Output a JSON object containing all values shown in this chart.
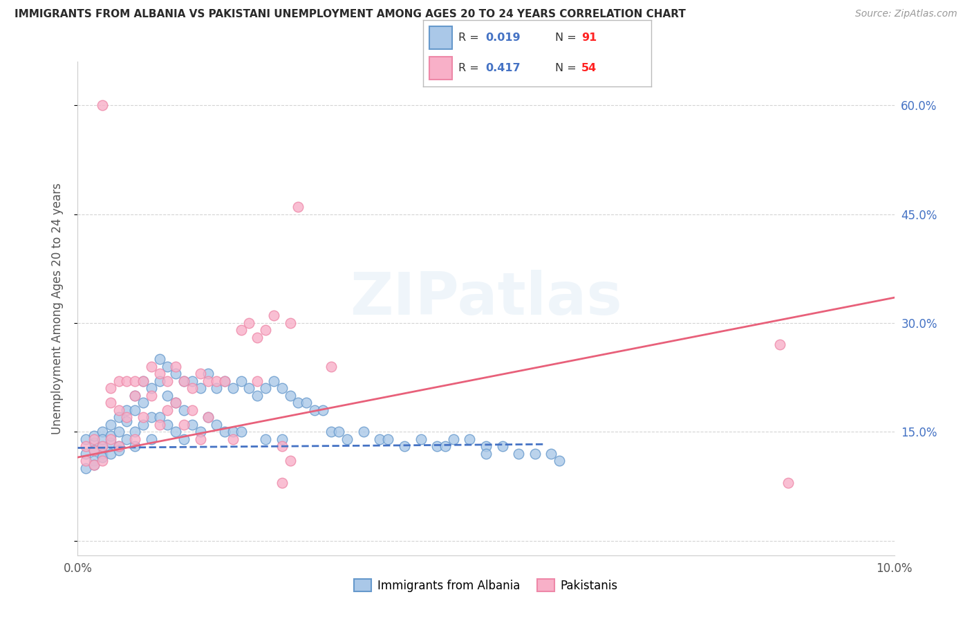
{
  "title": "IMMIGRANTS FROM ALBANIA VS PAKISTANI UNEMPLOYMENT AMONG AGES 20 TO 24 YEARS CORRELATION CHART",
  "source": "Source: ZipAtlas.com",
  "ylabel_left": "Unemployment Among Ages 20 to 24 years",
  "xlim": [
    0.0,
    0.1
  ],
  "ylim": [
    -2.0,
    66.0
  ],
  "x_ticks": [
    0.0,
    0.02,
    0.04,
    0.06,
    0.08,
    0.1
  ],
  "x_tick_labels": [
    "0.0%",
    "",
    "",
    "",
    "",
    "10.0%"
  ],
  "y_right_ticks": [
    0.0,
    15.0,
    30.0,
    45.0,
    60.0
  ],
  "y_right_tick_labels": [
    "",
    "15.0%",
    "30.0%",
    "45.0%",
    "60.0%"
  ],
  "legend_r1": "0.019",
  "legend_n1": "91",
  "legend_r2": "0.417",
  "legend_n2": "54",
  "color_albania_fill": "#aac8e8",
  "color_albania_edge": "#6699cc",
  "color_pakistan_fill": "#f8b0c8",
  "color_pakistan_edge": "#ee88a8",
  "color_albania_line": "#4472c4",
  "color_pakistan_line": "#e8607a",
  "color_r_value": "#4472c4",
  "color_n_value": "#ff2222",
  "background_color": "#ffffff",
  "grid_color": "#d0d0d0",
  "watermark": "ZIPatlas",
  "albania_trend_x": [
    0.0,
    0.057
  ],
  "albania_trend_y": [
    12.8,
    13.3
  ],
  "pakistan_trend_x": [
    0.0,
    0.1
  ],
  "pakistan_trend_y": [
    11.5,
    33.5
  ],
  "albania_x": [
    0.001,
    0.001,
    0.001,
    0.002,
    0.002,
    0.002,
    0.002,
    0.002,
    0.003,
    0.003,
    0.003,
    0.003,
    0.003,
    0.004,
    0.004,
    0.004,
    0.004,
    0.005,
    0.005,
    0.005,
    0.005,
    0.006,
    0.006,
    0.006,
    0.007,
    0.007,
    0.007,
    0.007,
    0.008,
    0.008,
    0.008,
    0.009,
    0.009,
    0.009,
    0.01,
    0.01,
    0.01,
    0.011,
    0.011,
    0.011,
    0.012,
    0.012,
    0.012,
    0.013,
    0.013,
    0.013,
    0.014,
    0.014,
    0.015,
    0.015,
    0.016,
    0.016,
    0.017,
    0.017,
    0.018,
    0.018,
    0.019,
    0.019,
    0.02,
    0.02,
    0.021,
    0.022,
    0.023,
    0.023,
    0.024,
    0.025,
    0.025,
    0.026,
    0.027,
    0.028,
    0.029,
    0.03,
    0.031,
    0.032,
    0.033,
    0.035,
    0.037,
    0.038,
    0.04,
    0.042,
    0.044,
    0.046,
    0.048,
    0.05,
    0.052,
    0.054,
    0.056,
    0.058,
    0.059,
    0.045,
    0.05
  ],
  "albania_y": [
    14.0,
    12.0,
    10.0,
    13.5,
    12.5,
    11.0,
    14.5,
    10.5,
    13.0,
    15.0,
    12.0,
    14.0,
    11.5,
    13.5,
    16.0,
    12.0,
    14.5,
    15.0,
    13.0,
    17.0,
    12.5,
    18.0,
    16.5,
    14.0,
    20.0,
    18.0,
    15.0,
    13.0,
    22.0,
    19.0,
    16.0,
    21.0,
    17.0,
    14.0,
    25.0,
    22.0,
    17.0,
    24.0,
    20.0,
    16.0,
    23.0,
    19.0,
    15.0,
    22.0,
    18.0,
    14.0,
    22.0,
    16.0,
    21.0,
    15.0,
    23.0,
    17.0,
    21.0,
    16.0,
    22.0,
    15.0,
    21.0,
    15.0,
    22.0,
    15.0,
    21.0,
    20.0,
    21.0,
    14.0,
    22.0,
    21.0,
    14.0,
    20.0,
    19.0,
    19.0,
    18.0,
    18.0,
    15.0,
    15.0,
    14.0,
    15.0,
    14.0,
    14.0,
    13.0,
    14.0,
    13.0,
    14.0,
    14.0,
    13.0,
    13.0,
    12.0,
    12.0,
    12.0,
    11.0,
    13.0,
    12.0
  ],
  "pakistan_x": [
    0.001,
    0.001,
    0.002,
    0.002,
    0.002,
    0.003,
    0.003,
    0.003,
    0.004,
    0.004,
    0.004,
    0.005,
    0.005,
    0.005,
    0.006,
    0.006,
    0.007,
    0.007,
    0.007,
    0.008,
    0.008,
    0.009,
    0.009,
    0.01,
    0.01,
    0.011,
    0.011,
    0.012,
    0.012,
    0.013,
    0.013,
    0.014,
    0.014,
    0.015,
    0.015,
    0.016,
    0.016,
    0.017,
    0.018,
    0.019,
    0.02,
    0.021,
    0.022,
    0.022,
    0.023,
    0.024,
    0.025,
    0.026,
    0.026,
    0.027,
    0.031,
    0.086,
    0.087,
    0.025
  ],
  "pakistan_y": [
    13.0,
    11.0,
    12.5,
    10.5,
    14.0,
    60.0,
    13.0,
    11.0,
    21.0,
    19.0,
    14.0,
    22.0,
    18.0,
    13.0,
    22.0,
    17.0,
    22.0,
    20.0,
    14.0,
    22.0,
    17.0,
    24.0,
    20.0,
    23.0,
    16.0,
    22.0,
    18.0,
    24.0,
    19.0,
    22.0,
    16.0,
    21.0,
    18.0,
    23.0,
    14.0,
    22.0,
    17.0,
    22.0,
    22.0,
    14.0,
    29.0,
    30.0,
    28.0,
    22.0,
    29.0,
    31.0,
    13.0,
    11.0,
    30.0,
    46.0,
    24.0,
    27.0,
    8.0,
    8.0
  ]
}
